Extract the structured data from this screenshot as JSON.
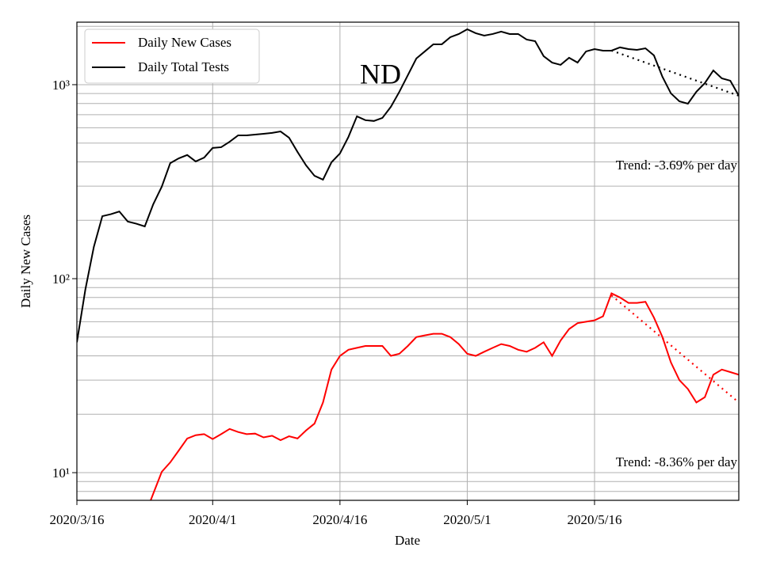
{
  "chart_data": {
    "type": "line",
    "title": "ND",
    "x_label": "Date",
    "y_label": "Daily New Cases",
    "log_y": true,
    "grid": true,
    "legend": "upper left",
    "x": [
      "2020/3/16",
      "2020/3/17",
      "2020/3/18",
      "2020/3/19",
      "2020/3/20",
      "2020/3/21",
      "2020/3/22",
      "2020/3/23",
      "2020/3/24",
      "2020/3/25",
      "2020/3/26",
      "2020/3/27",
      "2020/3/28",
      "2020/3/29",
      "2020/3/30",
      "2020/3/31",
      "2020/4/1",
      "2020/4/2",
      "2020/4/3",
      "2020/4/4",
      "2020/4/5",
      "2020/4/6",
      "2020/4/7",
      "2020/4/8",
      "2020/4/9",
      "2020/4/10",
      "2020/4/11",
      "2020/4/12",
      "2020/4/13",
      "2020/4/14",
      "2020/4/15",
      "2020/4/16",
      "2020/4/17",
      "2020/4/18",
      "2020/4/19",
      "2020/4/20",
      "2020/4/21",
      "2020/4/22",
      "2020/4/23",
      "2020/4/24",
      "2020/4/25",
      "2020/4/26",
      "2020/4/27",
      "2020/4/28",
      "2020/4/29",
      "2020/4/30",
      "2020/5/1",
      "2020/5/2",
      "2020/5/3",
      "2020/5/4",
      "2020/5/5",
      "2020/5/6",
      "2020/5/7",
      "2020/5/8",
      "2020/5/9",
      "2020/5/10",
      "2020/5/11",
      "2020/5/12",
      "2020/5/13",
      "2020/5/14",
      "2020/5/15",
      "2020/5/16",
      "2020/5/17",
      "2020/5/18",
      "2020/5/19",
      "2020/5/20",
      "2020/5/21",
      "2020/5/22",
      "2020/5/23",
      "2020/5/24",
      "2020/5/25",
      "2020/5/26",
      "2020/5/27",
      "2020/5/28",
      "2020/5/29",
      "2020/5/30",
      "2020/5/31",
      "2020/6/1",
      "2020/6/2"
    ],
    "series": [
      {
        "name": "Daily New Cases",
        "color": "#ff0000",
        "values": [
          null,
          null,
          null,
          null,
          null,
          null,
          null,
          null,
          6,
          7.8,
          10.1,
          11.3,
          13,
          15,
          15.6,
          15.8,
          14.9,
          15.8,
          16.8,
          16.2,
          15.8,
          15.9,
          15.2,
          15.5,
          14.7,
          15.4,
          15,
          16.5,
          17.9,
          23,
          34,
          40,
          43,
          44,
          45,
          45,
          45,
          40,
          41,
          45,
          50,
          51,
          52,
          52,
          50,
          46,
          41,
          40,
          42,
          44,
          46,
          45,
          43,
          42,
          44,
          47,
          40,
          48,
          55,
          59,
          60,
          61,
          64,
          84,
          80,
          75,
          75,
          76,
          63,
          50,
          37,
          30,
          27,
          23,
          24.5,
          32,
          34,
          33,
          32
        ]
      },
      {
        "name": "Daily Total Tests",
        "color": "#000000",
        "values": [
          47,
          88,
          146,
          210,
          215,
          222,
          197,
          192,
          186,
          242,
          298,
          394,
          417,
          434,
          402,
          421,
          472,
          476,
          508,
          548,
          548,
          553,
          558,
          564,
          574,
          533,
          450,
          384,
          339,
          324,
          398,
          442,
          538,
          687,
          656,
          650,
          674,
          769,
          919,
          1120,
          1364,
          1484,
          1615,
          1615,
          1757,
          1825,
          1930,
          1842,
          1790,
          1825,
          1877,
          1825,
          1825,
          1709,
          1675,
          1403,
          1300,
          1265,
          1376,
          1300,
          1484,
          1526,
          1498,
          1498,
          1557,
          1526,
          1512,
          1540,
          1415,
          1098,
          902,
          821,
          798,
          919,
          1019,
          1184,
          1078,
          1048,
          877
        ]
      }
    ],
    "trends": [
      {
        "color": "#000000",
        "x": [
          "2020/5/18",
          "2020/6/2"
        ],
        "values": [
          1500,
          877
        ],
        "label": "Trend: -3.69% per day"
      },
      {
        "color": "#ff0000",
        "x": [
          "2020/5/18",
          "2020/6/2"
        ],
        "values": [
          82,
          23
        ],
        "label": "Trend: -8.36% per day"
      }
    ],
    "xlim": [
      "2020/3/16",
      "2020/6/2"
    ],
    "xticks": [
      "2020/3/16",
      "2020/4/1",
      "2020/4/16",
      "2020/5/1",
      "2020/5/16"
    ],
    "ylim": [
      7.2,
      2100
    ],
    "yticks": [
      {
        "value": 10,
        "label": "10¹"
      },
      {
        "value": 100,
        "label": "10²"
      },
      {
        "value": 1000,
        "label": "10³"
      }
    ],
    "yminorticks": [
      8,
      9,
      20,
      30,
      40,
      50,
      60,
      70,
      80,
      90,
      200,
      300,
      400,
      500,
      600,
      700,
      800,
      900,
      2000
    ]
  }
}
